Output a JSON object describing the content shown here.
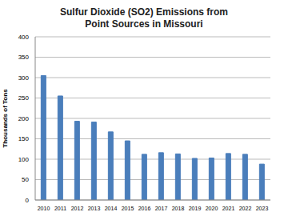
{
  "chart_data": {
    "type": "bar",
    "title": "Sulfur Dioxide (SO2) Emissions from\nPoint Sources in Missouri",
    "y_label": "Thousands of Tons",
    "categories": [
      "2010",
      "2011",
      "2012",
      "2013",
      "2014",
      "2015",
      "2016",
      "2017",
      "2018",
      "2019",
      "2020",
      "2021",
      "2022",
      "2023"
    ],
    "values": [
      305,
      255,
      193,
      191,
      167,
      145,
      112,
      116,
      113,
      102,
      103,
      114,
      112,
      88
    ],
    "color": "#4a7ebb",
    "ylim": [
      0,
      400
    ],
    "yticks": [
      0,
      50,
      100,
      150,
      200,
      250,
      300,
      350,
      400
    ],
    "grid": true
  }
}
